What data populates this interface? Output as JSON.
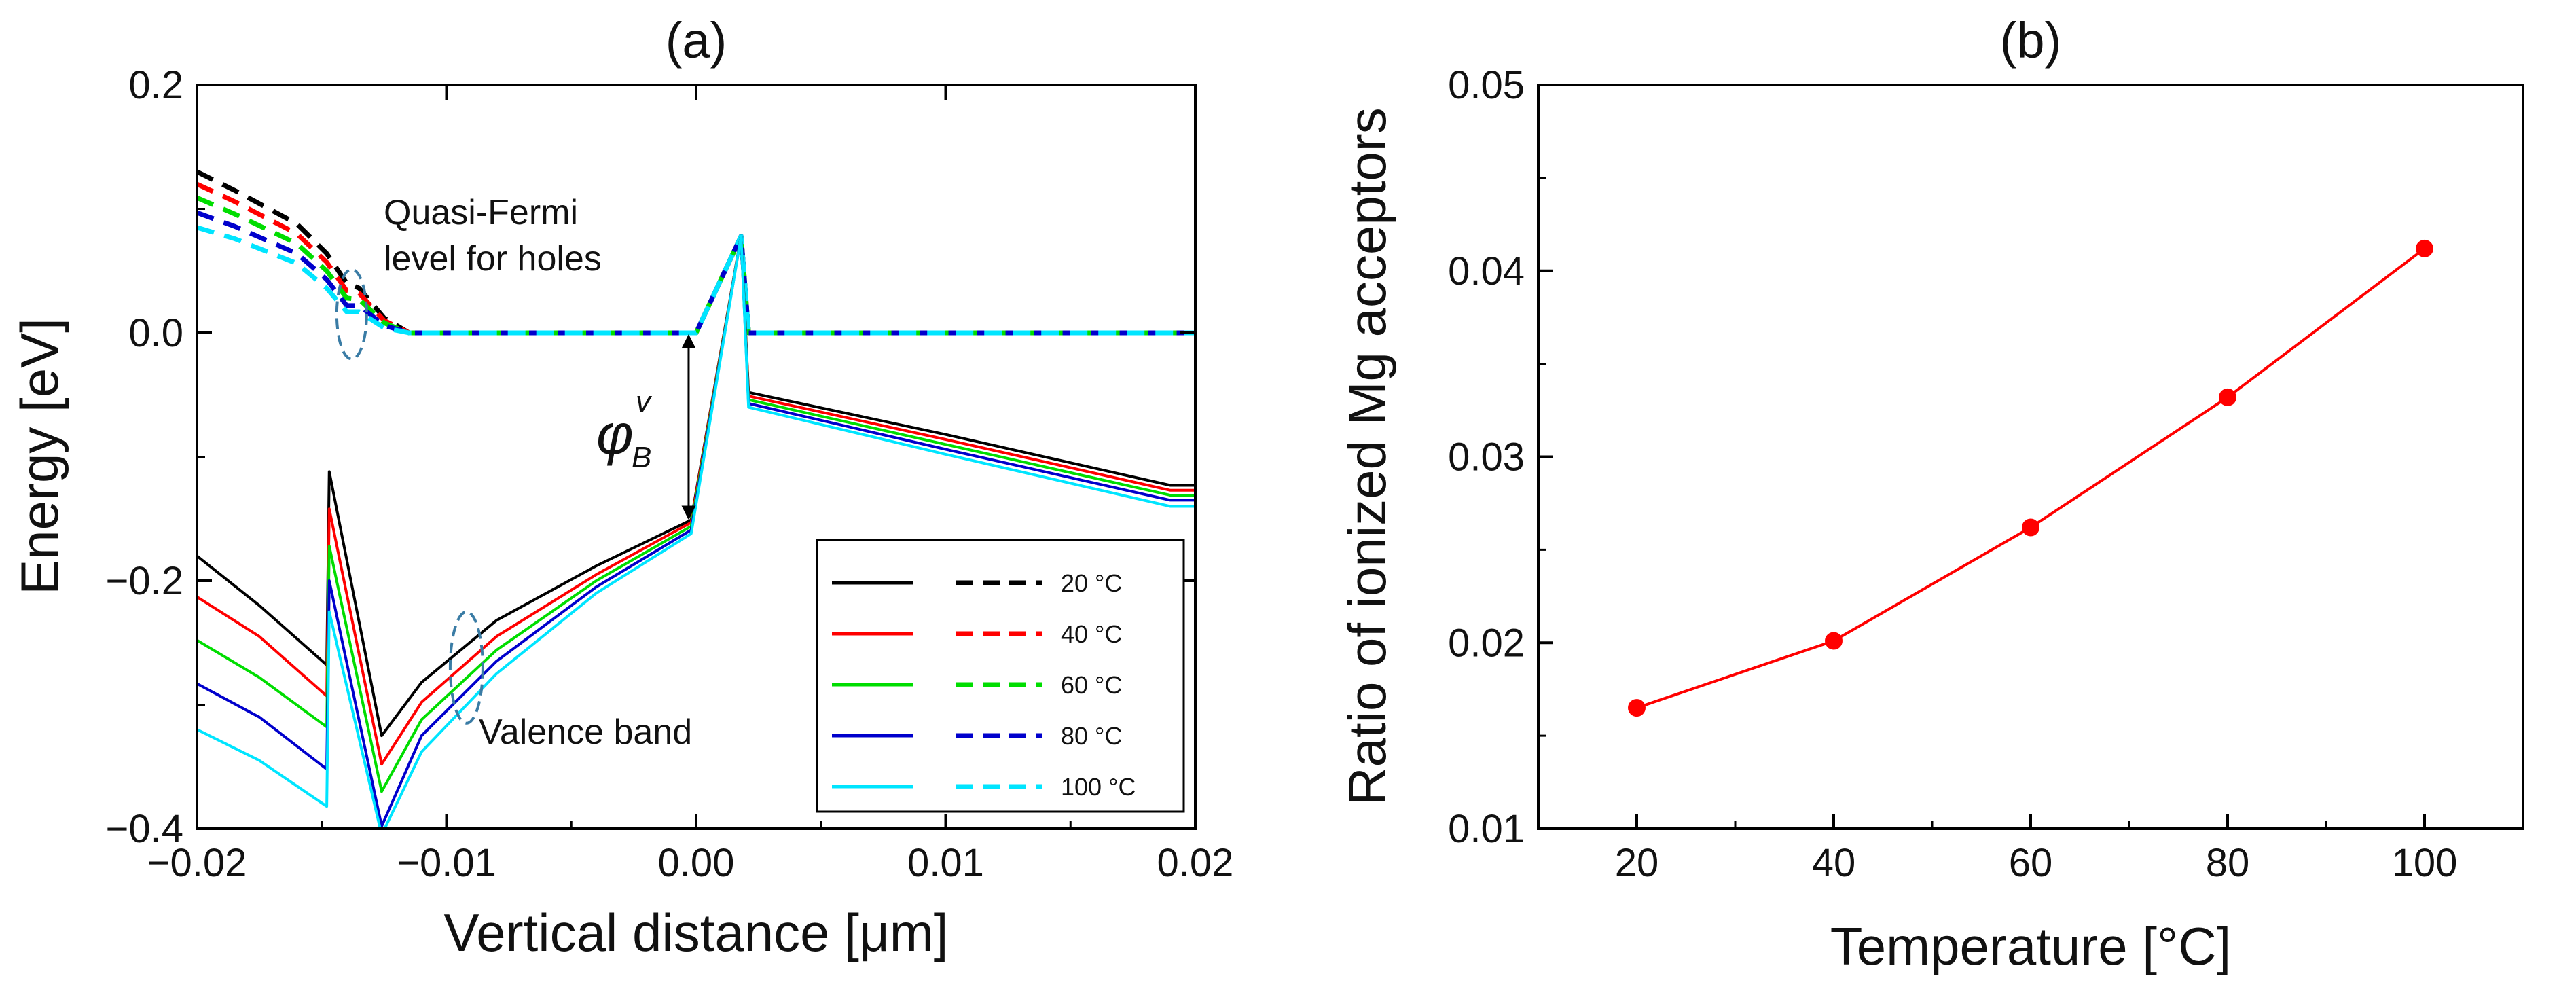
{
  "chart_data": [
    {
      "panel": "(a)",
      "type": "line",
      "title": "(a)",
      "xlabel": "Vertical distance [μm]",
      "ylabel": "Energy [eV]",
      "xlim": [
        -0.02,
        0.02
      ],
      "ylim": [
        -0.4,
        0.2
      ],
      "xticks": [
        -0.02,
        -0.01,
        0.0,
        0.01,
        0.02
      ],
      "xtick_labels": [
        "−0.02",
        "−0.01",
        "0.00",
        "0.01",
        "0.02"
      ],
      "yticks": [
        -0.4,
        -0.2,
        0.0,
        0.2
      ],
      "ytick_labels": [
        "−0.4",
        "−0.2",
        "0.0",
        "0.2"
      ],
      "legend_position": "bottom-right",
      "legend_unit": "°C",
      "series": [
        {
          "name": "20 °C",
          "color": "#000000",
          "valence_band": [
            [
              -0.02,
              -0.18
            ],
            [
              -0.0175,
              -0.22
            ],
            [
              -0.0148,
              -0.268
            ],
            [
              -0.0147,
              -0.112
            ],
            [
              -0.0126,
              -0.325
            ],
            [
              -0.011,
              -0.282
            ],
            [
              -0.008,
              -0.232
            ],
            [
              -0.004,
              -0.188
            ],
            [
              -0.0002,
              -0.151
            ],
            [
              0.0018,
              0.078
            ],
            [
              0.0021,
              -0.048
            ],
            [
              0.01,
              -0.082
            ],
            [
              0.019,
              -0.123
            ],
            [
              0.02,
              -0.123
            ]
          ],
          "quasi_fermi": [
            [
              -0.02,
              0.13
            ],
            [
              -0.0185,
              0.115
            ],
            [
              -0.016,
              0.088
            ],
            [
              -0.0148,
              0.064
            ],
            [
              -0.014,
              0.04
            ],
            [
              -0.0135,
              0.036
            ],
            [
              -0.0125,
              0.012
            ],
            [
              -0.0115,
              0.0
            ],
            [
              0.0,
              0.0
            ],
            [
              0.0018,
              0.078
            ],
            [
              0.0021,
              0.0
            ],
            [
              0.02,
              0.0
            ]
          ]
        },
        {
          "name": "40 °C",
          "color": "#ff0000",
          "valence_band": [
            [
              -0.02,
              -0.213
            ],
            [
              -0.0175,
              -0.245
            ],
            [
              -0.0148,
              -0.293
            ],
            [
              -0.0147,
              -0.142
            ],
            [
              -0.0126,
              -0.348
            ],
            [
              -0.011,
              -0.298
            ],
            [
              -0.008,
              -0.245
            ],
            [
              -0.004,
              -0.195
            ],
            [
              -0.0002,
              -0.153
            ],
            [
              0.0018,
              0.078
            ],
            [
              0.0021,
              -0.051
            ],
            [
              0.01,
              -0.086
            ],
            [
              0.019,
              -0.127
            ],
            [
              0.02,
              -0.127
            ]
          ],
          "quasi_fermi": [
            [
              -0.02,
              0.12
            ],
            [
              -0.0185,
              0.106
            ],
            [
              -0.016,
              0.08
            ],
            [
              -0.0148,
              0.057
            ],
            [
              -0.014,
              0.034
            ],
            [
              -0.0135,
              0.032
            ],
            [
              -0.0125,
              0.01
            ],
            [
              -0.0115,
              0.0
            ],
            [
              0.0,
              0.0
            ],
            [
              0.0018,
              0.078
            ],
            [
              0.0021,
              0.0
            ],
            [
              0.02,
              0.0
            ]
          ]
        },
        {
          "name": "60 °C",
          "color": "#00dd00",
          "valence_band": [
            [
              -0.02,
              -0.248
            ],
            [
              -0.0175,
              -0.278
            ],
            [
              -0.0148,
              -0.318
            ],
            [
              -0.0147,
              -0.172
            ],
            [
              -0.0126,
              -0.37
            ],
            [
              -0.011,
              -0.312
            ],
            [
              -0.008,
              -0.256
            ],
            [
              -0.004,
              -0.2
            ],
            [
              -0.0002,
              -0.156
            ],
            [
              0.0018,
              0.078
            ],
            [
              0.0021,
              -0.054
            ],
            [
              0.01,
              -0.09
            ],
            [
              0.019,
              -0.131
            ],
            [
              0.02,
              -0.131
            ]
          ],
          "quasi_fermi": [
            [
              -0.02,
              0.109
            ],
            [
              -0.0185,
              0.096
            ],
            [
              -0.016,
              0.072
            ],
            [
              -0.0148,
              0.05
            ],
            [
              -0.014,
              0.028
            ],
            [
              -0.0135,
              0.027
            ],
            [
              -0.0125,
              0.008
            ],
            [
              -0.0115,
              0.0
            ],
            [
              0.0,
              0.0
            ],
            [
              0.0018,
              0.078
            ],
            [
              0.0021,
              0.0
            ],
            [
              0.02,
              0.0
            ]
          ]
        },
        {
          "name": "80 °C",
          "color": "#0000cc",
          "valence_band": [
            [
              -0.02,
              -0.283
            ],
            [
              -0.0175,
              -0.31
            ],
            [
              -0.0148,
              -0.352
            ],
            [
              -0.0147,
              -0.2
            ],
            [
              -0.0126,
              -0.398
            ],
            [
              -0.011,
              -0.325
            ],
            [
              -0.008,
              -0.265
            ],
            [
              -0.004,
              -0.205
            ],
            [
              -0.0002,
              -0.159
            ],
            [
              0.0018,
              0.078
            ],
            [
              0.0021,
              -0.057
            ],
            [
              0.01,
              -0.094
            ],
            [
              0.019,
              -0.135
            ],
            [
              0.02,
              -0.135
            ]
          ],
          "quasi_fermi": [
            [
              -0.02,
              0.097
            ],
            [
              -0.0185,
              0.086
            ],
            [
              -0.016,
              0.064
            ],
            [
              -0.0148,
              0.043
            ],
            [
              -0.014,
              0.022
            ],
            [
              -0.0135,
              0.022
            ],
            [
              -0.0125,
              0.006
            ],
            [
              -0.0115,
              0.0
            ],
            [
              0.0,
              0.0
            ],
            [
              0.0018,
              0.078
            ],
            [
              0.0021,
              0.0
            ],
            [
              0.02,
              0.0
            ]
          ]
        },
        {
          "name": "100 °C",
          "color": "#00e5ff",
          "valence_band": [
            [
              -0.02,
              -0.32
            ],
            [
              -0.0175,
              -0.345
            ],
            [
              -0.0148,
              -0.382
            ],
            [
              -0.0147,
              -0.225
            ],
            [
              -0.0126,
              -0.405
            ],
            [
              -0.011,
              -0.338
            ],
            [
              -0.008,
              -0.275
            ],
            [
              -0.004,
              -0.21
            ],
            [
              -0.0002,
              -0.162
            ],
            [
              0.0018,
              0.078
            ],
            [
              0.0021,
              -0.06
            ],
            [
              0.01,
              -0.098
            ],
            [
              0.019,
              -0.14
            ],
            [
              0.02,
              -0.14
            ]
          ],
          "quasi_fermi": [
            [
              -0.02,
              0.085
            ],
            [
              -0.0185,
              0.076
            ],
            [
              -0.016,
              0.056
            ],
            [
              -0.0148,
              0.036
            ],
            [
              -0.014,
              0.017
            ],
            [
              -0.0135,
              0.017
            ],
            [
              -0.0125,
              0.004
            ],
            [
              -0.0115,
              0.0
            ],
            [
              0.0,
              0.0
            ],
            [
              0.0018,
              0.078
            ],
            [
              0.0021,
              0.0
            ],
            [
              0.02,
              0.0
            ]
          ]
        }
      ],
      "annotations": {
        "quasi_fermi_label": [
          "Quasi-Fermi",
          "level for holes"
        ],
        "valence_band_label": "Valence band",
        "barrier_symbol": "φ",
        "barrier_subscript": "B",
        "barrier_superscript": "v",
        "barrier_arrow_x": -0.0003,
        "barrier_arrow_y": [
          0.0,
          -0.152
        ],
        "quasi_fermi_ellipse_center": [
          -0.0138,
          0.015
        ],
        "valence_band_ellipse_center": [
          -0.0092,
          -0.27
        ]
      }
    },
    {
      "panel": "(b)",
      "type": "line",
      "title": "(b)",
      "xlabel": "Temperature [°C]",
      "ylabel": "Ratio of ionized Mg acceptors",
      "xlim": [
        10,
        110
      ],
      "ylim": [
        0.01,
        0.05
      ],
      "xticks": [
        20,
        40,
        60,
        80,
        100
      ],
      "yticks": [
        0.01,
        0.02,
        0.03,
        0.04,
        0.05
      ],
      "ytick_labels": [
        "0.01",
        "0.02",
        "0.03",
        "0.04",
        "0.05"
      ],
      "series": [
        {
          "name": "Ratio of ionized Mg acceptors",
          "color": "#ff0000",
          "x": [
            20,
            40,
            60,
            80,
            100
          ],
          "y": [
            0.0165,
            0.0201,
            0.0262,
            0.0332,
            0.0412
          ]
        }
      ]
    }
  ]
}
